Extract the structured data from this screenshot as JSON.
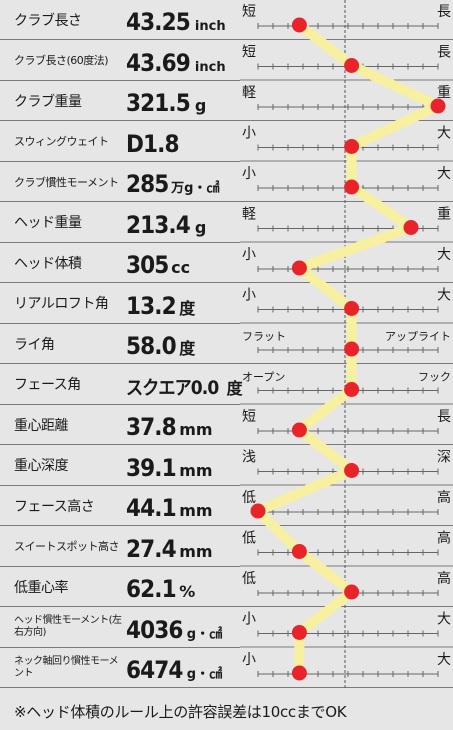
{
  "rows": [
    {
      "label": "クラブ長さ",
      "value": "43.25",
      "unit": "inch",
      "low": "短",
      "high": "長"
    },
    {
      "label": "クラブ長さ(60度法)",
      "value": "43.69",
      "unit": "inch",
      "low": "短",
      "high": "長"
    },
    {
      "label": "クラブ重量",
      "value": "321.5",
      "unit": "g",
      "low": "軽",
      "high": "重"
    },
    {
      "label": "スウィングウェイト",
      "value": "D1.8",
      "unit": "",
      "low": "小",
      "high": "大"
    },
    {
      "label": "クラブ慣性モーメント",
      "value": "285",
      "unit": "万g・㎠",
      "low": "小",
      "high": "大"
    },
    {
      "label": "ヘッド重量",
      "value": "213.4",
      "unit": "g",
      "low": "軽",
      "high": "重"
    },
    {
      "label": "ヘッド体積",
      "value": "305",
      "unit": "cc",
      "low": "小",
      "high": "大"
    },
    {
      "label": "リアルロフト角",
      "value": "13.2",
      "unit": "度",
      "low": "小",
      "high": "大"
    },
    {
      "label": "ライ角",
      "value": "58.0",
      "unit": "度",
      "low": "フラット",
      "high": "アップライト"
    },
    {
      "label": "フェース角",
      "value": "スクエア0.0",
      "unit": "度",
      "low": "オープン",
      "high": "フック"
    },
    {
      "label": "重心距離",
      "value": "37.8",
      "unit": "mm",
      "low": "短",
      "high": "長"
    },
    {
      "label": "重心深度",
      "value": "39.1",
      "unit": "mm",
      "low": "浅",
      "high": "深"
    },
    {
      "label": "フェース高さ",
      "value": "44.1",
      "unit": "mm",
      "low": "低",
      "high": "高"
    },
    {
      "label": "スイートスポット高さ",
      "value": "27.4",
      "unit": "mm",
      "low": "低",
      "high": "高"
    },
    {
      "label": "低重心率",
      "value": "62.1",
      "unit": "%",
      "low": "低",
      "high": "高"
    },
    {
      "label": "ヘッド慣性モーメント(左右方向)",
      "value": "4036",
      "unit": "g・㎠",
      "low": "小",
      "high": "大"
    },
    {
      "label": "ネック軸回り慣性モーメント",
      "value": "6474",
      "unit": "g・㎠",
      "low": "小",
      "high": "大"
    }
  ],
  "footnote": "※ヘッド体積のルール上の許容誤差は10ccまでOK",
  "colors": {
    "background": "#e6e6e6",
    "line": "#f7f0a0",
    "dot": "#e8242a",
    "rule": "#7a7a7a"
  },
  "chart_data": {
    "type": "line",
    "orientation": "vertical-profile",
    "scale": "low-to-high, relative position 0 (left) to 1 (right)",
    "categories": [
      "クラブ長さ",
      "クラブ長さ(60度法)",
      "クラブ重量",
      "スウィングウェイト",
      "クラブ慣性モーメント",
      "ヘッド重量",
      "ヘッド体積",
      "リアルロフト角",
      "ライ角",
      "フェース角",
      "重心距離",
      "重心深度",
      "フェース高さ",
      "スイートスポット高さ",
      "低重心率",
      "ヘッド慣性モーメント(左右方向)",
      "ネック軸回り慣性モーメント"
    ],
    "values": [
      0.23,
      0.52,
      1.0,
      0.52,
      0.52,
      0.85,
      0.23,
      0.52,
      0.52,
      0.52,
      0.23,
      0.52,
      0.0,
      0.23,
      0.52,
      0.23,
      0.23
    ],
    "grid": true
  }
}
